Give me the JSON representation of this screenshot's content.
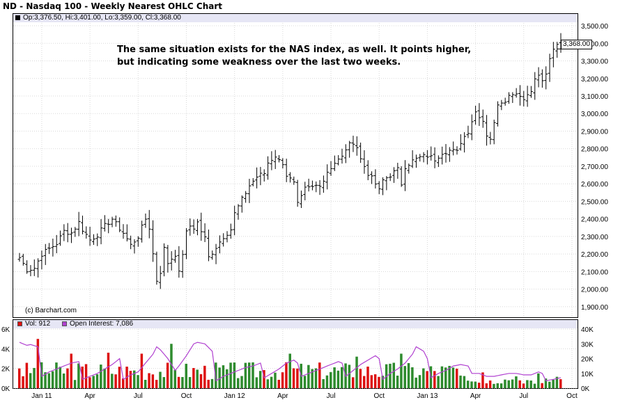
{
  "title": "ND - Nasdaq 100 - Weekly Nearest OHLC Chart",
  "info": {
    "ohlc": "Op:3,376.50, Hi:3,401.00, Lo:3,359.00, Cl:3,368.00"
  },
  "annotation": {
    "line1": "The same situation exists for the NAS index, as well.  It points higher,",
    "line2": "but indicating some weakness over the last two weeks."
  },
  "source": "(c) Barchart.com",
  "last_price_label": "3,368.00",
  "legend": {
    "volume": "Vol: 912",
    "open_interest": "Open Interest: 7,086"
  },
  "colors": {
    "bar_up": "#2e8b2e",
    "bar_down": "#dd1111",
    "open_interest_line": "#b040d0",
    "panel_header": "#e6e6f5"
  },
  "chart_data": {
    "type": "ohlc",
    "timeframe": "weekly",
    "price_axis": {
      "ylim": [
        1840,
        3520
      ],
      "ticks": [
        "1,900.00",
        "2,000.00",
        "2,100.00",
        "2,200.00",
        "2,300.00",
        "2,400.00",
        "2,500.00",
        "2,600.00",
        "2,700.00",
        "2,800.00",
        "2,900.00",
        "3,000.00",
        "3,100.00",
        "3,200.00",
        "3,300.00",
        "3,400.00",
        "3,500.00"
      ],
      "tick_values": [
        1900,
        2000,
        2100,
        2200,
        2300,
        2400,
        2500,
        2600,
        2700,
        2800,
        2900,
        3000,
        3100,
        3200,
        3300,
        3400,
        3500
      ]
    },
    "volume_axis": {
      "left_ticks": [
        "0K",
        "2K",
        "4K",
        "6K"
      ],
      "left_values": [
        0,
        2000,
        4000,
        6000
      ],
      "right_ticks": [
        "0K",
        "10K",
        "20K",
        "30K",
        "40K"
      ],
      "right_values": [
        0,
        10000,
        20000,
        30000,
        40000
      ]
    },
    "x_labels": [
      {
        "label": "Jan 11",
        "week": 6
      },
      {
        "label": "Apr",
        "week": 19
      },
      {
        "label": "Jul",
        "week": 32
      },
      {
        "label": "Oct",
        "week": 45
      },
      {
        "label": "Jan 12",
        "week": 58
      },
      {
        "label": "Apr",
        "week": 71
      },
      {
        "label": "Jul",
        "week": 84
      },
      {
        "label": "Oct",
        "week": 97
      },
      {
        "label": "Jan 13",
        "week": 110
      },
      {
        "label": "Apr",
        "week": 123
      },
      {
        "label": "Jul",
        "week": 136
      },
      {
        "label": "Oct",
        "week": 149
      }
    ],
    "price_anchors": [
      [
        0,
        2180
      ],
      [
        2,
        2110
      ],
      [
        4,
        2120
      ],
      [
        6,
        2200
      ],
      [
        8,
        2230
      ],
      [
        10,
        2260
      ],
      [
        12,
        2330
      ],
      [
        14,
        2320
      ],
      [
        16,
        2380
      ],
      [
        17,
        2340
      ],
      [
        19,
        2280
      ],
      [
        21,
        2310
      ],
      [
        23,
        2360
      ],
      [
        25,
        2400
      ],
      [
        26,
        2370
      ],
      [
        28,
        2320
      ],
      [
        30,
        2250
      ],
      [
        32,
        2300
      ],
      [
        34,
        2400
      ],
      [
        35,
        2350
      ],
      [
        36,
        2200
      ],
      [
        37,
        2050
      ],
      [
        38,
        2100
      ],
      [
        39,
        2230
      ],
      [
        40,
        2150
      ],
      [
        42,
        2200
      ],
      [
        43,
        2090
      ],
      [
        45,
        2320
      ],
      [
        46,
        2360
      ],
      [
        47,
        2350
      ],
      [
        48,
        2380
      ],
      [
        49,
        2330
      ],
      [
        50,
        2290
      ],
      [
        51,
        2180
      ],
      [
        53,
        2240
      ],
      [
        55,
        2300
      ],
      [
        57,
        2340
      ],
      [
        58,
        2430
      ],
      [
        60,
        2510
      ],
      [
        62,
        2590
      ],
      [
        64,
        2640
      ],
      [
        66,
        2660
      ],
      [
        67,
        2720
      ],
      [
        69,
        2760
      ],
      [
        70,
        2730
      ],
      [
        71,
        2720
      ],
      [
        72,
        2650
      ],
      [
        74,
        2600
      ],
      [
        75,
        2480
      ],
      [
        76,
        2520
      ],
      [
        77,
        2570
      ],
      [
        79,
        2580
      ],
      [
        81,
        2600
      ],
      [
        82,
        2620
      ],
      [
        83,
        2670
      ],
      [
        85,
        2720
      ],
      [
        87,
        2750
      ],
      [
        88,
        2800
      ],
      [
        90,
        2840
      ],
      [
        91,
        2810
      ],
      [
        92,
        2740
      ],
      [
        93,
        2700
      ],
      [
        94,
        2660
      ],
      [
        96,
        2600
      ],
      [
        97,
        2560
      ],
      [
        98,
        2620
      ],
      [
        100,
        2650
      ],
      [
        102,
        2680
      ],
      [
        103,
        2600
      ],
      [
        104,
        2700
      ],
      [
        106,
        2730
      ],
      [
        108,
        2750
      ],
      [
        110,
        2760
      ],
      [
        112,
        2740
      ],
      [
        114,
        2780
      ],
      [
        116,
        2790
      ],
      [
        118,
        2780
      ],
      [
        119,
        2840
      ],
      [
        121,
        2900
      ],
      [
        122,
        2960
      ],
      [
        123,
        3010
      ],
      [
        124,
        2990
      ],
      [
        125,
        2960
      ],
      [
        126,
        2880
      ],
      [
        127,
        2860
      ],
      [
        128,
        2940
      ],
      [
        129,
        3060
      ],
      [
        131,
        3080
      ],
      [
        133,
        3120
      ],
      [
        135,
        3110
      ],
      [
        136,
        3080
      ],
      [
        138,
        3140
      ],
      [
        139,
        3190
      ],
      [
        140,
        3220
      ],
      [
        141,
        3180
      ],
      [
        142,
        3230
      ],
      [
        143,
        3300
      ],
      [
        144,
        3360
      ],
      [
        145,
        3390
      ],
      [
        146,
        3368
      ]
    ],
    "weeks": 147,
    "volume_sample": [
      {
        "week": 0,
        "volume": 2000,
        "up": false
      },
      {
        "week": 5,
        "volume": 5000,
        "up": false
      },
      {
        "week": 14,
        "volume": 3500,
        "up": false
      },
      {
        "week": 24,
        "volume": 3600,
        "up": false
      },
      {
        "week": 33,
        "volume": 3500,
        "up": false
      },
      {
        "week": 41,
        "volume": 4500,
        "up": true
      },
      {
        "week": 73,
        "volume": 3500,
        "up": true
      },
      {
        "week": 91,
        "volume": 3200,
        "up": true
      },
      {
        "week": 103,
        "volume": 3500,
        "up": true
      },
      {
        "week": 125,
        "volume": 1600,
        "up": false
      },
      {
        "week": 140,
        "volume": 1500,
        "up": true
      },
      {
        "week": 146,
        "volume": 912,
        "up": false
      }
    ],
    "open_interest_anchors": [
      [
        0,
        31000
      ],
      [
        2,
        29000
      ],
      [
        3,
        29500
      ],
      [
        5,
        28000
      ],
      [
        6,
        8000
      ],
      [
        8,
        11000
      ],
      [
        10,
        13000
      ],
      [
        12,
        15000
      ],
      [
        14,
        17000
      ],
      [
        16,
        18000
      ],
      [
        17,
        6000
      ],
      [
        19,
        8000
      ],
      [
        21,
        10000
      ],
      [
        23,
        13000
      ],
      [
        25,
        16000
      ],
      [
        27,
        20000
      ],
      [
        28,
        6000
      ],
      [
        30,
        9000
      ],
      [
        32,
        11000
      ],
      [
        34,
        17000
      ],
      [
        36,
        23000
      ],
      [
        37,
        28000
      ],
      [
        38,
        26000
      ],
      [
        40,
        20000
      ],
      [
        42,
        12000
      ],
      [
        43,
        15000
      ],
      [
        45,
        22000
      ],
      [
        47,
        30000
      ],
      [
        48,
        31000
      ],
      [
        50,
        30000
      ],
      [
        52,
        25000
      ],
      [
        53,
        5000
      ],
      [
        55,
        8000
      ],
      [
        57,
        10000
      ],
      [
        59,
        12000
      ],
      [
        61,
        14000
      ],
      [
        63,
        15000
      ],
      [
        65,
        17000
      ],
      [
        66,
        7000
      ],
      [
        68,
        10000
      ],
      [
        70,
        13000
      ],
      [
        72,
        17000
      ],
      [
        74,
        19000
      ],
      [
        75,
        17000
      ],
      [
        76,
        8000
      ],
      [
        78,
        10000
      ],
      [
        80,
        12000
      ],
      [
        82,
        14000
      ],
      [
        84,
        16000
      ],
      [
        86,
        18000
      ],
      [
        87,
        17000
      ],
      [
        88,
        8000
      ],
      [
        90,
        12000
      ],
      [
        92,
        16000
      ],
      [
        94,
        19000
      ],
      [
        96,
        22000
      ],
      [
        97,
        20000
      ],
      [
        98,
        6000
      ],
      [
        100,
        10000
      ],
      [
        102,
        13000
      ],
      [
        104,
        17000
      ],
      [
        106,
        23000
      ],
      [
        107,
        28000
      ],
      [
        109,
        25000
      ],
      [
        110,
        20000
      ],
      [
        111,
        7000
      ],
      [
        113,
        10000
      ],
      [
        115,
        12000
      ],
      [
        117,
        15000
      ],
      [
        119,
        16000
      ],
      [
        121,
        15000
      ],
      [
        122,
        10000
      ],
      [
        124,
        10000
      ],
      [
        126,
        8000
      ],
      [
        128,
        8000
      ],
      [
        130,
        9000
      ],
      [
        132,
        10000
      ],
      [
        134,
        10000
      ],
      [
        136,
        9000
      ],
      [
        138,
        9000
      ],
      [
        140,
        11000
      ],
      [
        141,
        10000
      ],
      [
        142,
        5000
      ],
      [
        144,
        6000
      ],
      [
        146,
        7086
      ]
    ]
  }
}
